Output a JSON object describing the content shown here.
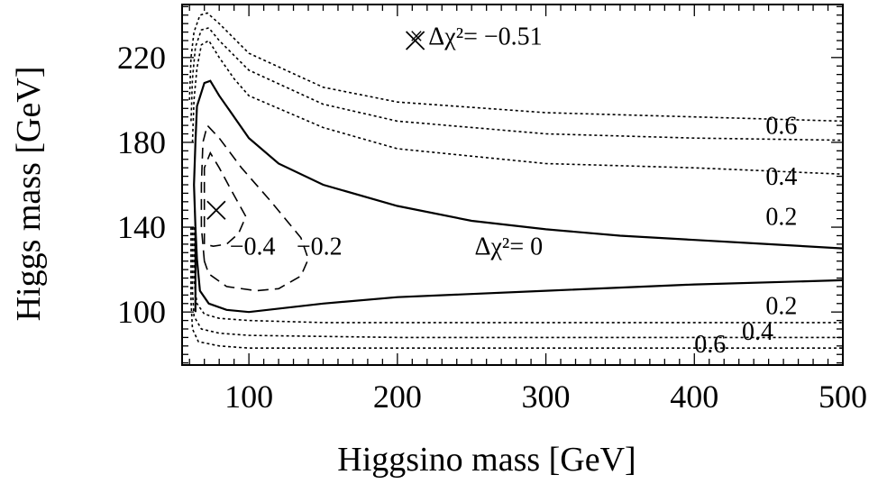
{
  "chart_data": {
    "type": "line",
    "xlabel": "Higgsino mass [GeV]",
    "ylabel": "Higgs mass [GeV]",
    "xlim": [
      55,
      500
    ],
    "ylim": [
      75,
      245
    ],
    "xticks": [
      100,
      200,
      300,
      400,
      500
    ],
    "yticks": [
      100,
      140,
      180,
      220
    ],
    "grid": false,
    "series": [
      {
        "name": "",
        "style": "solid",
        "points": [
          [
            64,
            100
          ],
          [
            64,
            110
          ],
          [
            64,
            125
          ],
          [
            64,
            140
          ],
          [
            63,
            160
          ],
          [
            64,
            180
          ],
          [
            65,
            197
          ],
          [
            70,
            208
          ],
          [
            74,
            209
          ],
          [
            80,
            202
          ],
          [
            90,
            192
          ],
          [
            100,
            182
          ],
          [
            120,
            170
          ],
          [
            150,
            160
          ],
          [
            200,
            150
          ],
          [
            250,
            143
          ],
          [
            300,
            139
          ],
          [
            350,
            136
          ],
          [
            400,
            134
          ],
          [
            450,
            132
          ],
          [
            500,
            130
          ]
        ]
      },
      {
        "name": "",
        "style": "solid",
        "points": [
          [
            64,
            140
          ],
          [
            65,
            125
          ],
          [
            67,
            110
          ],
          [
            73,
            104
          ],
          [
            85,
            101
          ],
          [
            100,
            100
          ],
          [
            150,
            104
          ],
          [
            200,
            107
          ],
          [
            300,
            110
          ],
          [
            400,
            113
          ],
          [
            500,
            115
          ]
        ]
      },
      {
        "name": "",
        "style": "dashed",
        "points": [
          [
            70,
            132
          ],
          [
            70,
            150
          ],
          [
            70,
            168
          ],
          [
            74,
            175
          ],
          [
            80,
            168
          ],
          [
            90,
            155
          ],
          [
            98,
            145
          ],
          [
            93,
            137
          ],
          [
            85,
            132
          ],
          [
            76,
            131
          ],
          [
            70,
            132
          ]
        ]
      },
      {
        "name": "",
        "style": "dashed",
        "points": [
          [
            70,
            124
          ],
          [
            68,
            140
          ],
          [
            68,
            160
          ],
          [
            69,
            180
          ],
          [
            72,
            188
          ],
          [
            80,
            182
          ],
          [
            95,
            168
          ],
          [
            115,
            152
          ],
          [
            135,
            135
          ],
          [
            140,
            125
          ],
          [
            135,
            117
          ],
          [
            120,
            111
          ],
          [
            105,
            110
          ],
          [
            85,
            112
          ],
          [
            73,
            118
          ],
          [
            70,
            124
          ]
        ]
      },
      {
        "name": "",
        "style": "dotted",
        "points": [
          [
            62,
            180
          ],
          [
            63,
            200
          ],
          [
            65,
            215
          ],
          [
            68,
            226
          ],
          [
            73,
            228
          ],
          [
            80,
            220
          ],
          [
            90,
            210
          ],
          [
            100,
            202
          ],
          [
            150,
            187
          ],
          [
            200,
            177
          ],
          [
            300,
            170
          ],
          [
            400,
            168
          ],
          [
            500,
            165
          ]
        ]
      },
      {
        "name": "",
        "style": "dotted",
        "points": [
          [
            61,
            190
          ],
          [
            62,
            210
          ],
          [
            64,
            225
          ],
          [
            68,
            233
          ],
          [
            73,
            234
          ],
          [
            80,
            228
          ],
          [
            100,
            214
          ],
          [
            150,
            198
          ],
          [
            200,
            190
          ],
          [
            300,
            184
          ],
          [
            400,
            182
          ],
          [
            500,
            181
          ]
        ]
      },
      {
        "name": "",
        "style": "dotted",
        "points": [
          [
            60,
            200
          ],
          [
            61,
            220
          ],
          [
            63,
            232
          ],
          [
            67,
            240
          ],
          [
            72,
            241
          ],
          [
            80,
            236
          ],
          [
            100,
            222
          ],
          [
            150,
            206
          ],
          [
            200,
            199
          ],
          [
            300,
            194
          ],
          [
            400,
            192
          ],
          [
            500,
            190
          ]
        ]
      },
      {
        "name": "",
        "style": "dotted",
        "points": [
          [
            63,
            140
          ],
          [
            63,
            115
          ],
          [
            65,
            104
          ],
          [
            70,
            99
          ],
          [
            80,
            97
          ],
          [
            100,
            96
          ],
          [
            150,
            95
          ],
          [
            200,
            95
          ],
          [
            300,
            95
          ],
          [
            400,
            95
          ],
          [
            500,
            95
          ]
        ]
      },
      {
        "name": "",
        "style": "dotted",
        "points": [
          [
            62,
            140
          ],
          [
            62,
            110
          ],
          [
            63,
            98
          ],
          [
            68,
            92
          ],
          [
            80,
            90
          ],
          [
            100,
            89
          ],
          [
            200,
            88
          ],
          [
            300,
            88
          ],
          [
            400,
            88
          ],
          [
            500,
            88
          ]
        ]
      },
      {
        "name": "",
        "style": "dotted",
        "points": [
          [
            61,
            140
          ],
          [
            61,
            105
          ],
          [
            62,
            92
          ],
          [
            66,
            86
          ],
          [
            80,
            84
          ],
          [
            100,
            83
          ],
          [
            200,
            83
          ],
          [
            300,
            83
          ],
          [
            400,
            83
          ],
          [
            500,
            83
          ]
        ]
      }
    ],
    "markers": [
      {
        "shape": "x",
        "x": 78,
        "y": 148
      },
      {
        "shape": "x",
        "x": 212,
        "y": 228
      }
    ],
    "annotations": [
      {
        "text": "× Δχ²= −0.51",
        "x": 208,
        "y": 226
      },
      {
        "text": "Δχ²= 0",
        "x": 252,
        "y": 127
      },
      {
        "text": "−0.4",
        "x": 87,
        "y": 127
      },
      {
        "text": "−0.2",
        "x": 132,
        "y": 127
      },
      {
        "text": "0.6",
        "x": 448,
        "y": 184
      },
      {
        "text": "0.4",
        "x": 448,
        "y": 160
      },
      {
        "text": "0.2",
        "x": 448,
        "y": 141
      },
      {
        "text": "0.2",
        "x": 448,
        "y": 99
      },
      {
        "text": "0.4",
        "x": 432,
        "y": 87
      },
      {
        "text": "0.6",
        "x": 400,
        "y": 81
      }
    ]
  }
}
